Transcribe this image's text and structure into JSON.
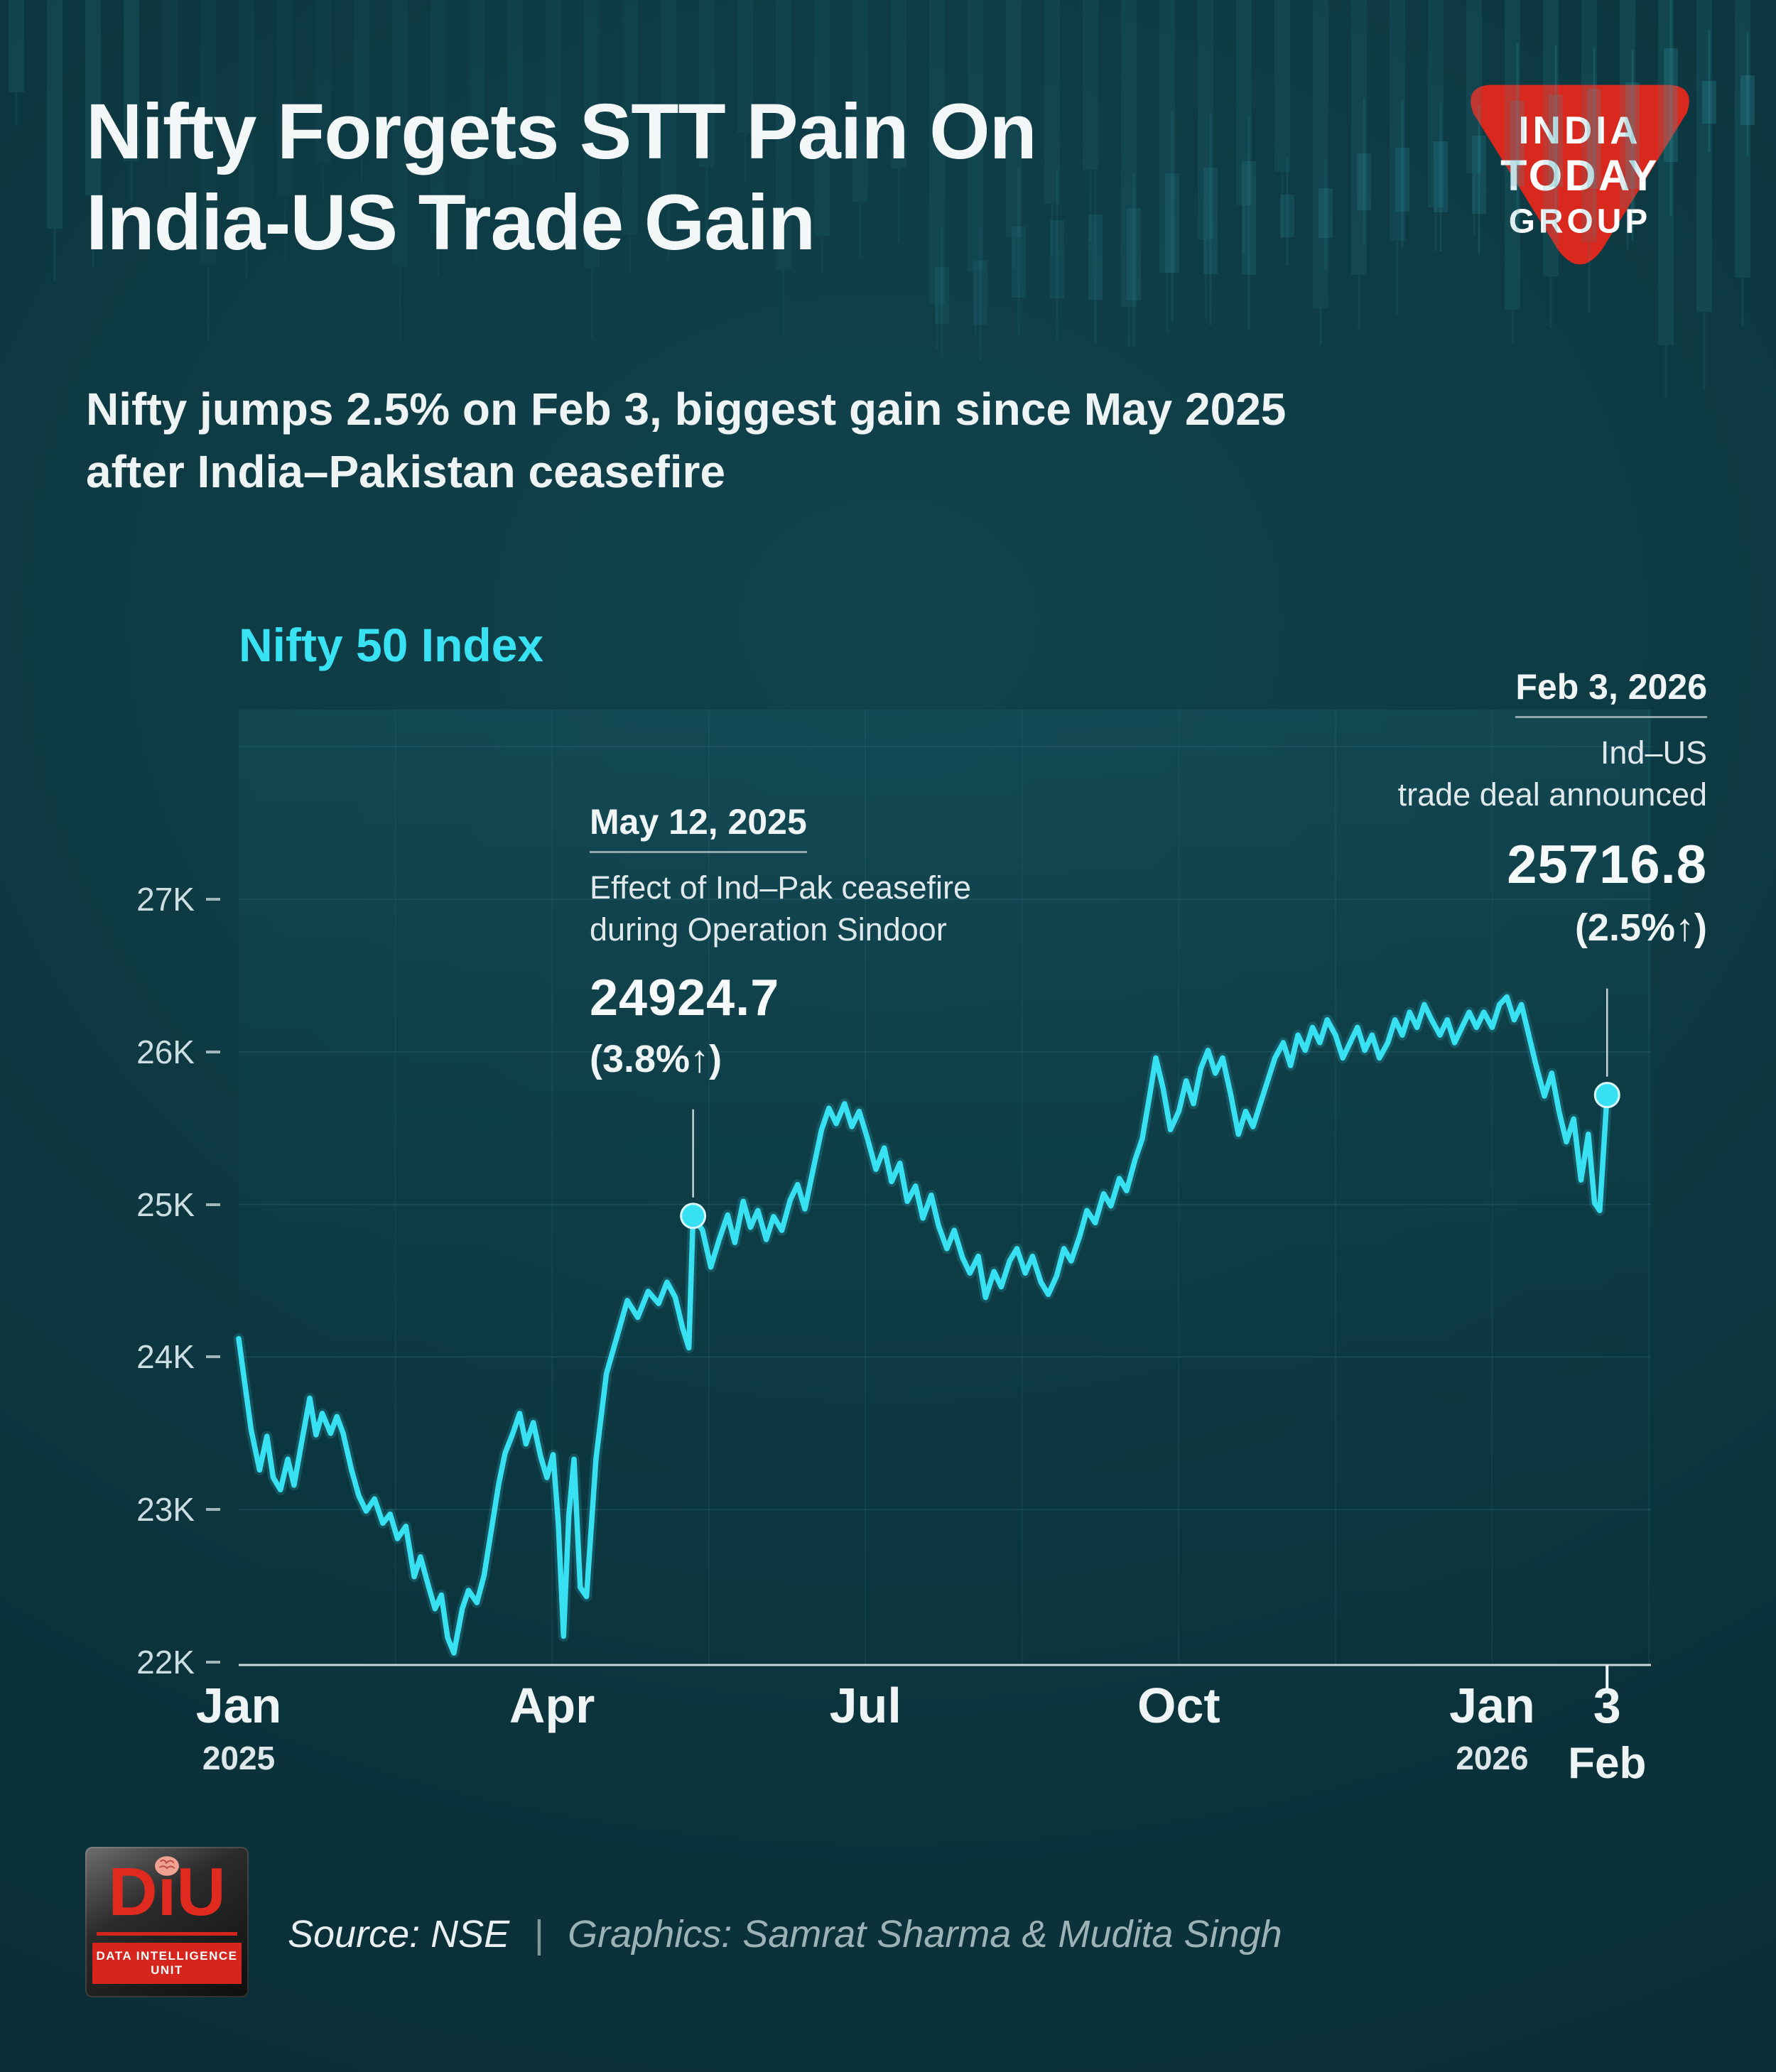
{
  "header": {
    "title_line1": "Nifty Forgets STT Pain On",
    "title_line2": "India-US Trade Gain",
    "subtitle_line1": "Nifty jumps 2.5% on Feb 3, biggest gain since May 2025",
    "subtitle_line2": "after India–Pakistan ceasefire",
    "logo": {
      "line1": "INDIA",
      "line2": "TODAY",
      "line3": "GROUP"
    }
  },
  "chart_data": {
    "type": "line",
    "title": "Nifty 50 Index",
    "series_name": "Nifty 50 Index",
    "x_unit": "months since Jan 1, 2025",
    "xlim": [
      0,
      13.52
    ],
    "ylim": [
      21980,
      28250
    ],
    "grid": true,
    "legend": "none",
    "line_color": "#38e1f2",
    "y_ticks": [
      22000,
      23000,
      24000,
      25000,
      26000,
      27000
    ],
    "y_tick_labels": [
      "22K",
      "23K",
      "24K",
      "25K",
      "26K",
      "27K"
    ],
    "x_ticks": [
      {
        "pos": 0,
        "label": "Jan",
        "sublabel": "2025",
        "highlight": false
      },
      {
        "pos": 3,
        "label": "Apr",
        "sublabel": "",
        "highlight": false
      },
      {
        "pos": 6,
        "label": "Jul",
        "sublabel": "",
        "highlight": false
      },
      {
        "pos": 9,
        "label": "Oct",
        "sublabel": "",
        "highlight": false
      },
      {
        "pos": 12,
        "label": "Jan",
        "sublabel": "2026",
        "highlight": false
      },
      {
        "pos": 13.1,
        "label": "3",
        "sublabel": "Feb",
        "highlight": true
      }
    ],
    "points": [
      [
        0,
        24120
      ],
      [
        0.06,
        23820
      ],
      [
        0.12,
        23520
      ],
      [
        0.2,
        23260
      ],
      [
        0.27,
        23480
      ],
      [
        0.33,
        23210
      ],
      [
        0.4,
        23130
      ],
      [
        0.47,
        23330
      ],
      [
        0.53,
        23160
      ],
      [
        0.6,
        23430
      ],
      [
        0.68,
        23730
      ],
      [
        0.74,
        23490
      ],
      [
        0.8,
        23630
      ],
      [
        0.88,
        23500
      ],
      [
        0.94,
        23610
      ],
      [
        1,
        23500
      ],
      [
        1.08,
        23260
      ],
      [
        1.15,
        23090
      ],
      [
        1.22,
        22990
      ],
      [
        1.3,
        23070
      ],
      [
        1.38,
        22910
      ],
      [
        1.45,
        22970
      ],
      [
        1.52,
        22810
      ],
      [
        1.6,
        22890
      ],
      [
        1.68,
        22560
      ],
      [
        1.74,
        22690
      ],
      [
        1.82,
        22490
      ],
      [
        1.88,
        22350
      ],
      [
        1.94,
        22440
      ],
      [
        2,
        22160
      ],
      [
        2.06,
        22060
      ],
      [
        2.14,
        22350
      ],
      [
        2.2,
        22470
      ],
      [
        2.28,
        22390
      ],
      [
        2.35,
        22570
      ],
      [
        2.42,
        22870
      ],
      [
        2.49,
        23170
      ],
      [
        2.55,
        23370
      ],
      [
        2.62,
        23490
      ],
      [
        2.69,
        23630
      ],
      [
        2.75,
        23430
      ],
      [
        2.82,
        23570
      ],
      [
        2.89,
        23350
      ],
      [
        2.95,
        23210
      ],
      [
        3.01,
        23360
      ],
      [
        3.06,
        22910
      ],
      [
        3.11,
        22170
      ],
      [
        3.16,
        22960
      ],
      [
        3.21,
        23330
      ],
      [
        3.27,
        22490
      ],
      [
        3.33,
        22430
      ],
      [
        3.42,
        23330
      ],
      [
        3.52,
        23890
      ],
      [
        3.62,
        24130
      ],
      [
        3.72,
        24370
      ],
      [
        3.82,
        24260
      ],
      [
        3.92,
        24430
      ],
      [
        4.02,
        24350
      ],
      [
        4.1,
        24490
      ],
      [
        4.18,
        24390
      ],
      [
        4.25,
        24190
      ],
      [
        4.31,
        24060
      ],
      [
        4.35,
        24924.7
      ],
      [
        4.44,
        24830
      ],
      [
        4.52,
        24590
      ],
      [
        4.6,
        24770
      ],
      [
        4.68,
        24930
      ],
      [
        4.75,
        24750
      ],
      [
        4.83,
        25020
      ],
      [
        4.9,
        24850
      ],
      [
        4.97,
        24960
      ],
      [
        5.05,
        24770
      ],
      [
        5.12,
        24920
      ],
      [
        5.2,
        24830
      ],
      [
        5.28,
        25030
      ],
      [
        5.35,
        25130
      ],
      [
        5.42,
        24970
      ],
      [
        5.5,
        25230
      ],
      [
        5.58,
        25490
      ],
      [
        5.65,
        25630
      ],
      [
        5.72,
        25530
      ],
      [
        5.8,
        25660
      ],
      [
        5.87,
        25510
      ],
      [
        5.94,
        25610
      ],
      [
        6.02,
        25430
      ],
      [
        6.1,
        25230
      ],
      [
        6.18,
        25370
      ],
      [
        6.25,
        25150
      ],
      [
        6.33,
        25270
      ],
      [
        6.4,
        25020
      ],
      [
        6.48,
        25120
      ],
      [
        6.55,
        24910
      ],
      [
        6.63,
        25060
      ],
      [
        6.7,
        24860
      ],
      [
        6.78,
        24710
      ],
      [
        6.85,
        24830
      ],
      [
        6.93,
        24650
      ],
      [
        7,
        24550
      ],
      [
        7.08,
        24660
      ],
      [
        7.15,
        24390
      ],
      [
        7.23,
        24560
      ],
      [
        7.3,
        24460
      ],
      [
        7.38,
        24630
      ],
      [
        7.45,
        24710
      ],
      [
        7.53,
        24550
      ],
      [
        7.6,
        24660
      ],
      [
        7.68,
        24490
      ],
      [
        7.75,
        24410
      ],
      [
        7.83,
        24530
      ],
      [
        7.9,
        24710
      ],
      [
        7.97,
        24630
      ],
      [
        8.05,
        24790
      ],
      [
        8.12,
        24960
      ],
      [
        8.2,
        24880
      ],
      [
        8.28,
        25070
      ],
      [
        8.35,
        24990
      ],
      [
        8.43,
        25170
      ],
      [
        8.5,
        25090
      ],
      [
        8.58,
        25290
      ],
      [
        8.65,
        25430
      ],
      [
        8.72,
        25710
      ],
      [
        8.78,
        25960
      ],
      [
        8.85,
        25760
      ],
      [
        8.92,
        25490
      ],
      [
        9,
        25610
      ],
      [
        9.07,
        25810
      ],
      [
        9.14,
        25660
      ],
      [
        9.21,
        25890
      ],
      [
        9.28,
        26010
      ],
      [
        9.35,
        25860
      ],
      [
        9.42,
        25960
      ],
      [
        9.5,
        25710
      ],
      [
        9.57,
        25460
      ],
      [
        9.64,
        25610
      ],
      [
        9.71,
        25510
      ],
      [
        9.78,
        25660
      ],
      [
        9.85,
        25810
      ],
      [
        9.92,
        25960
      ],
      [
        10,
        26060
      ],
      [
        10.07,
        25910
      ],
      [
        10.14,
        26110
      ],
      [
        10.21,
        26010
      ],
      [
        10.28,
        26160
      ],
      [
        10.35,
        26060
      ],
      [
        10.42,
        26210
      ],
      [
        10.5,
        26110
      ],
      [
        10.57,
        25960
      ],
      [
        10.64,
        26060
      ],
      [
        10.71,
        26160
      ],
      [
        10.78,
        26010
      ],
      [
        10.85,
        26110
      ],
      [
        10.92,
        25960
      ],
      [
        11,
        26060
      ],
      [
        11.07,
        26210
      ],
      [
        11.14,
        26110
      ],
      [
        11.21,
        26260
      ],
      [
        11.28,
        26160
      ],
      [
        11.35,
        26310
      ],
      [
        11.42,
        26210
      ],
      [
        11.5,
        26110
      ],
      [
        11.57,
        26210
      ],
      [
        11.64,
        26060
      ],
      [
        11.71,
        26160
      ],
      [
        11.78,
        26260
      ],
      [
        11.85,
        26160
      ],
      [
        11.92,
        26260
      ],
      [
        12,
        26160
      ],
      [
        12.07,
        26310
      ],
      [
        12.14,
        26360
      ],
      [
        12.21,
        26210
      ],
      [
        12.28,
        26310
      ],
      [
        12.35,
        26110
      ],
      [
        12.42,
        25910
      ],
      [
        12.5,
        25710
      ],
      [
        12.57,
        25860
      ],
      [
        12.64,
        25610
      ],
      [
        12.71,
        25410
      ],
      [
        12.78,
        25560
      ],
      [
        12.85,
        25160
      ],
      [
        12.92,
        25460
      ],
      [
        12.98,
        25010
      ],
      [
        13.03,
        24960
      ],
      [
        13.1,
        25716.8
      ]
    ],
    "annotations": [
      {
        "x": 4.35,
        "value": 24924.7,
        "date": "May 12, 2025",
        "desc_line1": "Effect of Ind–Pak ceasefire",
        "desc_line2": "during Operation Sindoor",
        "value_label": "24924.7",
        "pct": "(3.8%↑)"
      },
      {
        "x": 13.1,
        "value": 25716.8,
        "date": "Feb 3, 2026",
        "desc_line1": "Ind–US",
        "desc_line2": "trade deal announced",
        "value_label": "25716.8",
        "pct": "(2.5%↑)"
      }
    ]
  },
  "footer": {
    "diu_wordmark": "DiU",
    "diu_tagline": "DATA INTELLIGENCE UNIT",
    "source": "Source: NSE",
    "separator": "|",
    "credits": "Graphics: Samrat Sharma & Mudita Singh"
  },
  "colors": {
    "background": "#0c343c",
    "accent_cyan": "#38e1f2",
    "logo_red": "#d9281e",
    "text_light": "#f2f6f6"
  }
}
